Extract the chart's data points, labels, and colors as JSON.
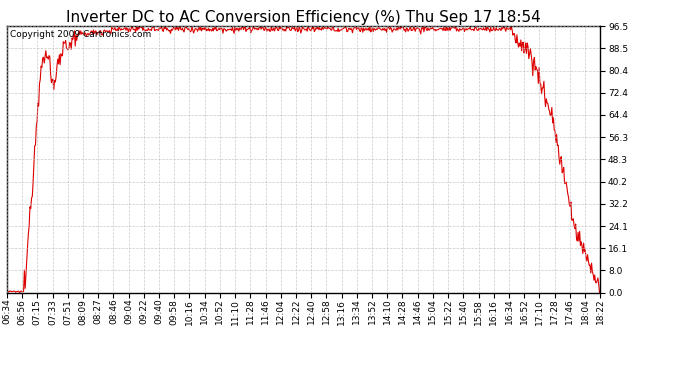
{
  "title": "Inverter DC to AC Conversion Efficiency (%) Thu Sep 17 18:54",
  "copyright": "Copyright 2009 Cartronics.com",
  "yticks": [
    0.0,
    8.0,
    16.1,
    24.1,
    32.2,
    40.2,
    48.3,
    56.3,
    64.4,
    72.4,
    80.4,
    88.5,
    96.5
  ],
  "ylim": [
    0.0,
    96.5
  ],
  "xtick_labels": [
    "06:34",
    "06:56",
    "07:15",
    "07:33",
    "07:51",
    "08:09",
    "08:27",
    "08:46",
    "09:04",
    "09:22",
    "09:40",
    "09:58",
    "10:16",
    "10:34",
    "10:52",
    "11:10",
    "11:28",
    "11:46",
    "12:04",
    "12:22",
    "12:40",
    "12:58",
    "13:16",
    "13:34",
    "13:52",
    "14:10",
    "14:28",
    "14:46",
    "15:04",
    "15:22",
    "15:40",
    "15:58",
    "16:16",
    "16:34",
    "16:52",
    "17:10",
    "17:28",
    "17:46",
    "18:04",
    "18:22"
  ],
  "line_color": "#dd0000",
  "bg_color": "#ffffff",
  "grid_color": "#bbbbbb",
  "title_fontsize": 11,
  "copyright_fontsize": 6.5,
  "tick_fontsize": 6.5,
  "line_width": 0.8,
  "n_points": 748
}
